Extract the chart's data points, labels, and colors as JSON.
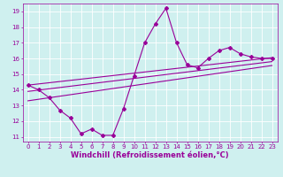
{
  "title": "",
  "xlabel": "Windchill (Refroidissement éolien,°C)",
  "bg_color": "#cff0ef",
  "grid_color": "#ffffff",
  "line_color": "#990099",
  "x_data": [
    0,
    1,
    2,
    3,
    4,
    5,
    6,
    7,
    8,
    9,
    10,
    11,
    12,
    13,
    14,
    15,
    16,
    17,
    18,
    19,
    20,
    21,
    22,
    23
  ],
  "y_main": [
    14.3,
    14.0,
    13.5,
    12.7,
    12.2,
    11.2,
    11.5,
    11.1,
    11.1,
    12.8,
    14.9,
    17.0,
    18.2,
    19.2,
    17.0,
    15.6,
    15.4,
    16.0,
    16.5,
    16.7,
    16.3,
    16.1,
    16.0,
    16.0
  ],
  "trend1_x": [
    0,
    23
  ],
  "trend1_y": [
    14.3,
    16.05
  ],
  "trend2_x": [
    0,
    23
  ],
  "trend2_y": [
    13.9,
    15.8
  ],
  "trend3_x": [
    0,
    23
  ],
  "trend3_y": [
    13.3,
    15.55
  ],
  "xlim": [
    -0.5,
    23.5
  ],
  "ylim": [
    10.7,
    19.5
  ],
  "yticks": [
    11,
    12,
    13,
    14,
    15,
    16,
    17,
    18,
    19
  ],
  "xticks": [
    0,
    1,
    2,
    3,
    4,
    5,
    6,
    7,
    8,
    9,
    10,
    11,
    12,
    13,
    14,
    15,
    16,
    17,
    18,
    19,
    20,
    21,
    22,
    23
  ],
  "tick_color": "#990099",
  "tick_fontsize": 5.0,
  "xlabel_fontsize": 6.0,
  "marker": "D",
  "marker_size": 2.0,
  "line_width": 0.8
}
